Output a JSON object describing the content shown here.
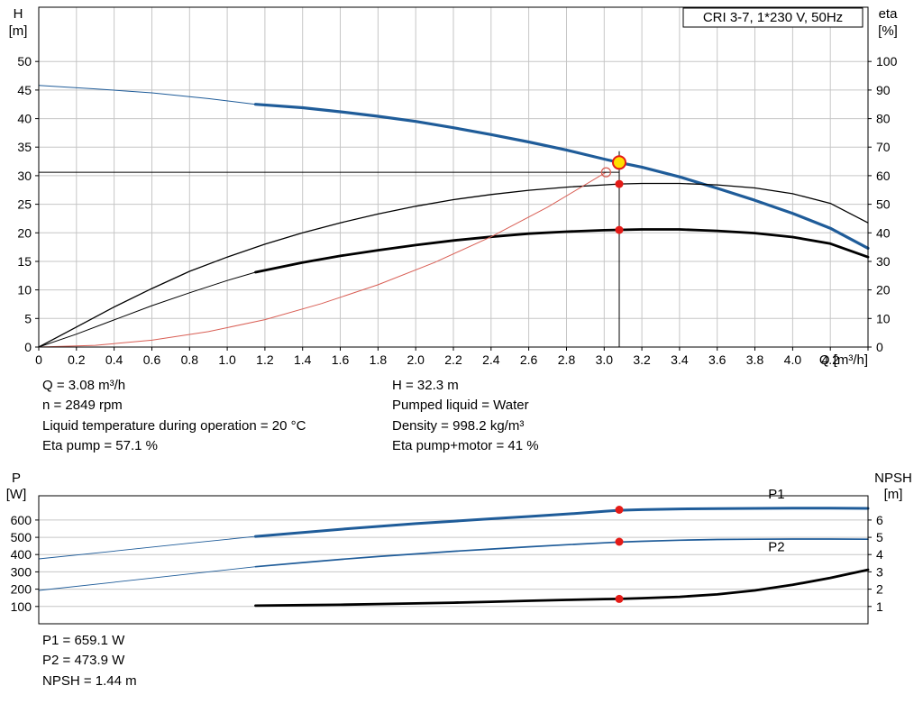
{
  "colors": {
    "curve_blue": "#1f5c99",
    "curve_black": "#000000",
    "system_red": "#d95f55",
    "marker_red": "#e41b17",
    "duty_fill": "#ffe000",
    "grid": "#c6c6c6",
    "frame": "#000000"
  },
  "header": {
    "title": "CRI 3-7, 1*230 V, 50Hz"
  },
  "info_panel": {
    "left": [
      "Q = 3.08 m³/h",
      "n = 2849 rpm",
      "Liquid temperature during operation = 20 °C",
      "Eta pump = 57.1 %"
    ],
    "right": [
      "H = 32.3 m",
      "Pumped liquid = Water",
      "Density = 998.2 kg/m³",
      "Eta pump+motor = 41 %"
    ]
  },
  "result_panel": {
    "lines": [
      "P1 = 659.1 W",
      "P2 = 473.9 W",
      "NPSH = 1.44 m"
    ]
  },
  "chart_data": [
    {
      "type": "line",
      "name": "hq-eta-chart",
      "title": "CRI 3-7, 1*230 V, 50Hz",
      "x_axis": {
        "label": "Q [m³/h]",
        "range": [
          0,
          4.4
        ],
        "ticks": [
          0,
          0.2,
          0.4,
          0.6,
          0.8,
          1,
          1.2,
          1.4,
          1.6,
          1.8,
          2,
          2.2,
          2.4,
          2.6,
          2.8,
          3,
          3.2,
          3.4,
          3.6,
          3.8,
          4,
          4.2,
          4.4
        ],
        "tick_labels": [
          "0",
          "0.2",
          "0.4",
          "0.6",
          "0.8",
          "1.0",
          "1.2",
          "1.4",
          "1.6",
          "1.8",
          "2.0",
          "2.2",
          "2.4",
          "2.6",
          "2.8",
          "3.0",
          "3.2",
          "3.4",
          "3.6",
          "3.8",
          "4.0",
          "4.2",
          ""
        ]
      },
      "y_left": {
        "title_lines": [
          "H",
          "[m]"
        ],
        "range": [
          0,
          59.5
        ],
        "ticks": [
          0,
          5,
          10,
          15,
          20,
          25,
          30,
          35,
          40,
          45,
          50
        ]
      },
      "y_right": {
        "title_lines": [
          "eta",
          "[%]"
        ],
        "range": [
          0,
          119
        ],
        "ticks": [
          0,
          10,
          20,
          30,
          40,
          50,
          60,
          70,
          80,
          90,
          100
        ]
      },
      "series": [
        {
          "name": "pump-curve-extension",
          "axis": "left",
          "color": "#1f5c99",
          "width": 1,
          "points": [
            [
              0,
              45.8
            ],
            [
              0.3,
              45.2
            ],
            [
              0.6,
              44.5
            ],
            [
              0.9,
              43.5
            ],
            [
              1.15,
              42.5
            ]
          ]
        },
        {
          "name": "pump-curve",
          "axis": "left",
          "color": "#1f5c99",
          "width": 3.2,
          "points": [
            [
              1.15,
              42.5
            ],
            [
              1.4,
              41.9
            ],
            [
              1.6,
              41.2
            ],
            [
              1.8,
              40.4
            ],
            [
              2.0,
              39.5
            ],
            [
              2.2,
              38.4
            ],
            [
              2.4,
              37.2
            ],
            [
              2.6,
              35.9
            ],
            [
              2.8,
              34.5
            ],
            [
              3.0,
              32.9
            ],
            [
              3.08,
              32.3
            ],
            [
              3.2,
              31.5
            ],
            [
              3.4,
              29.8
            ],
            [
              3.6,
              27.8
            ],
            [
              3.8,
              25.7
            ],
            [
              4.0,
              23.4
            ],
            [
              4.2,
              20.8
            ],
            [
              4.4,
              17.3
            ]
          ]
        },
        {
          "name": "eta-pump-curve",
          "axis": "right",
          "color": "#000000",
          "width": 1.3,
          "points": [
            [
              0,
              0
            ],
            [
              0.2,
              7
            ],
            [
              0.4,
              14
            ],
            [
              0.6,
              20.5
            ],
            [
              0.8,
              26.5
            ],
            [
              1.0,
              31.5
            ],
            [
              1.2,
              36
            ],
            [
              1.4,
              40
            ],
            [
              1.6,
              43.5
            ],
            [
              1.8,
              46.6
            ],
            [
              2.0,
              49.3
            ],
            [
              2.2,
              51.6
            ],
            [
              2.4,
              53.4
            ],
            [
              2.6,
              54.9
            ],
            [
              2.8,
              56
            ],
            [
              3.0,
              56.8
            ],
            [
              3.08,
              57.1
            ],
            [
              3.2,
              57.3
            ],
            [
              3.4,
              57.3
            ],
            [
              3.6,
              56.8
            ],
            [
              3.8,
              55.7
            ],
            [
              4.0,
              53.7
            ],
            [
              4.2,
              50.3
            ],
            [
              4.4,
              43.5
            ]
          ]
        },
        {
          "name": "eta-pump-motor-extension",
          "axis": "right",
          "color": "#000000",
          "width": 1,
          "points": [
            [
              0,
              0
            ],
            [
              0.2,
              4.5
            ],
            [
              0.4,
              9.5
            ],
            [
              0.6,
              14.5
            ],
            [
              0.8,
              19
            ],
            [
              1.0,
              23.3
            ],
            [
              1.15,
              26.2
            ]
          ]
        },
        {
          "name": "eta-pump-motor-curve",
          "axis": "right",
          "color": "#000000",
          "width": 2.8,
          "points": [
            [
              1.15,
              26.2
            ],
            [
              1.4,
              29.6
            ],
            [
              1.6,
              31.9
            ],
            [
              1.8,
              33.9
            ],
            [
              2.0,
              35.7
            ],
            [
              2.2,
              37.3
            ],
            [
              2.4,
              38.6
            ],
            [
              2.6,
              39.7
            ],
            [
              2.8,
              40.4
            ],
            [
              3.0,
              40.9
            ],
            [
              3.2,
              41.2
            ],
            [
              3.4,
              41.2
            ],
            [
              3.6,
              40.7
            ],
            [
              3.8,
              39.9
            ],
            [
              4.0,
              38.5
            ],
            [
              4.2,
              36.2
            ],
            [
              4.4,
              31.5
            ]
          ]
        },
        {
          "name": "system-curve",
          "axis": "left",
          "color": "#d95f55",
          "width": 1,
          "points": [
            [
              0,
              0
            ],
            [
              0.3,
              0.3
            ],
            [
              0.6,
              1.2
            ],
            [
              0.9,
              2.7
            ],
            [
              1.2,
              4.8
            ],
            [
              1.5,
              7.6
            ],
            [
              1.8,
              10.9
            ],
            [
              2.1,
              14.8
            ],
            [
              2.4,
              19.3
            ],
            [
              2.7,
              24.5
            ],
            [
              3.01,
              30.6
            ]
          ]
        }
      ],
      "crosshair": {
        "x": 3.08,
        "y": 30.6,
        "v_top": 34.3
      },
      "markers": [
        {
          "name": "duty-point-marker",
          "x": 3.08,
          "y": 32.3,
          "axis": "left",
          "style": "duty"
        },
        {
          "name": "system-curve-intersection-marker",
          "x": 3.01,
          "y": 30.6,
          "axis": "left",
          "style": "open"
        },
        {
          "name": "eta-pump-point-marker",
          "x": 3.08,
          "y": 57.1,
          "axis": "right",
          "style": "dot"
        },
        {
          "name": "eta-pump-motor-point-marker",
          "x": 3.08,
          "y": 41,
          "axis": "right",
          "style": "dot"
        }
      ],
      "operating_point": {
        "Q": 3.08,
        "H": 32.3,
        "eta_pump": 57.1,
        "eta_pump_motor": 41
      }
    },
    {
      "type": "line",
      "name": "power-npsh-chart",
      "title": "",
      "x_axis": {
        "label": "",
        "range": [
          0,
          4.4
        ],
        "ticks": [],
        "tick_labels": []
      },
      "y_left": {
        "title_lines": [
          "P",
          "[W]"
        ],
        "range": [
          0,
          740
        ],
        "ticks": [
          100,
          200,
          300,
          400,
          500,
          600
        ]
      },
      "y_right": {
        "title_lines": [
          "NPSH",
          "[m]"
        ],
        "range": [
          0,
          7.4
        ],
        "ticks": [
          1,
          2,
          3,
          4,
          5,
          6
        ]
      },
      "series": [
        {
          "name": "p1-curve-extension",
          "axis": "left",
          "color": "#1f5c99",
          "width": 0.9,
          "points": [
            [
              0,
              375
            ],
            [
              0.4,
              420
            ],
            [
              0.8,
              466
            ],
            [
              1.15,
              505
            ]
          ]
        },
        {
          "name": "p1-curve",
          "axis": "left",
          "color": "#1f5c99",
          "width": 3,
          "points": [
            [
              1.15,
              505
            ],
            [
              1.4,
              528
            ],
            [
              1.6,
              546
            ],
            [
              1.8,
              563
            ],
            [
              2.0,
              579
            ],
            [
              2.2,
              593
            ],
            [
              2.4,
              607
            ],
            [
              2.6,
              620
            ],
            [
              2.8,
              634
            ],
            [
              3.0,
              650
            ],
            [
              3.08,
              656
            ],
            [
              3.2,
              660
            ],
            [
              3.4,
              664
            ],
            [
              3.6,
              666
            ],
            [
              3.8,
              667
            ],
            [
              4.0,
              668
            ],
            [
              4.2,
              668
            ],
            [
              4.4,
              667
            ]
          ]
        },
        {
          "name": "p2-curve-extension",
          "axis": "left",
          "color": "#1f5c99",
          "width": 0.9,
          "points": [
            [
              0,
              193
            ],
            [
              0.4,
              240
            ],
            [
              0.8,
              288
            ],
            [
              1.15,
              330
            ]
          ]
        },
        {
          "name": "p2-curve",
          "axis": "left",
          "color": "#1f5c99",
          "width": 1.7,
          "points": [
            [
              1.15,
              330
            ],
            [
              1.4,
              354
            ],
            [
              1.6,
              372
            ],
            [
              1.8,
              389
            ],
            [
              2.0,
              404
            ],
            [
              2.2,
              419
            ],
            [
              2.4,
              432
            ],
            [
              2.6,
              445
            ],
            [
              2.8,
              457
            ],
            [
              3.0,
              468
            ],
            [
              3.08,
              472
            ],
            [
              3.2,
              477
            ],
            [
              3.4,
              483
            ],
            [
              3.6,
              487
            ],
            [
              3.8,
              489
            ],
            [
              4.0,
              490
            ],
            [
              4.2,
              490
            ],
            [
              4.4,
              489
            ]
          ]
        },
        {
          "name": "npsh-curve",
          "axis": "right",
          "color": "#000000",
          "width": 2.8,
          "points": [
            [
              1.15,
              1.05
            ],
            [
              1.4,
              1.08
            ],
            [
              1.6,
              1.1
            ],
            [
              1.8,
              1.14
            ],
            [
              2.0,
              1.18
            ],
            [
              2.2,
              1.22
            ],
            [
              2.4,
              1.27
            ],
            [
              2.6,
              1.33
            ],
            [
              2.8,
              1.38
            ],
            [
              3.0,
              1.43
            ],
            [
              3.08,
              1.44
            ],
            [
              3.2,
              1.48
            ],
            [
              3.4,
              1.56
            ],
            [
              3.6,
              1.7
            ],
            [
              3.8,
              1.93
            ],
            [
              4.0,
              2.25
            ],
            [
              4.2,
              2.65
            ],
            [
              4.4,
              3.12
            ]
          ]
        }
      ],
      "annotations": [
        {
          "text": "P1",
          "x": 3.87,
          "y": 724,
          "axis": "left",
          "color": "#1f5c99"
        },
        {
          "text": "P2",
          "x": 3.87,
          "y": 420,
          "axis": "left",
          "color": "#1f5c99"
        }
      ],
      "markers": [
        {
          "name": "p1-point-marker",
          "x": 3.08,
          "y": 659,
          "axis": "left",
          "style": "dot"
        },
        {
          "name": "p2-point-marker",
          "x": 3.08,
          "y": 474,
          "axis": "left",
          "style": "dot"
        },
        {
          "name": "npsh-point-marker",
          "x": 3.08,
          "y": 1.44,
          "axis": "right",
          "style": "dot"
        }
      ],
      "operating_point": {
        "P1_W": 659.1,
        "P2_W": 473.9,
        "NPSH_m": 1.44
      }
    }
  ]
}
